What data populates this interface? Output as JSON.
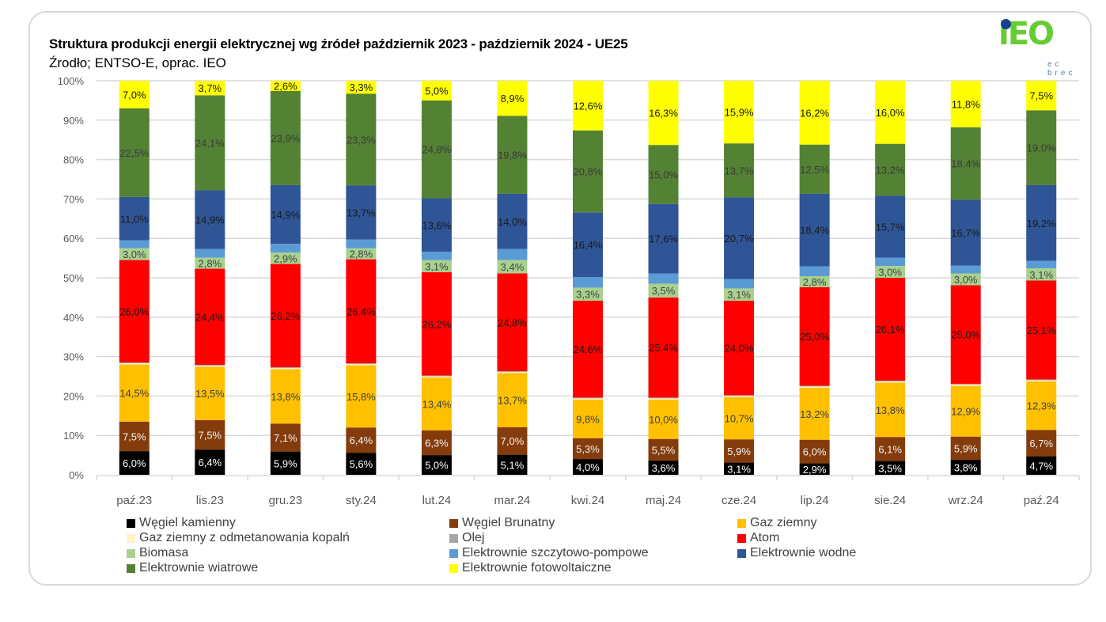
{
  "header": {
    "title": "Struktura produkcji energii elektrycznej wg źródeł październik 2023 - październik 2024  - UE25",
    "subtitle": "Źrodło; ENTSO-E, oprac. IEO",
    "logo_text": "iEO",
    "logo_subtext": "ec brec"
  },
  "chart_data": {
    "type": "bar",
    "stacked": true,
    "normalized": true,
    "title": "Struktura produkcji energii elektrycznej wg źródeł październik 2023 - październik 2024  - UE25",
    "subtitle": "Źrodło; ENTSO-E, oprac. IEO",
    "xlabel": "",
    "ylabel": "",
    "ylim": [
      0,
      100
    ],
    "yticks": [
      "0%",
      "10%",
      "20%",
      "30%",
      "40%",
      "50%",
      "60%",
      "70%",
      "80%",
      "90%",
      "100%"
    ],
    "grid": true,
    "legend_position": "bottom",
    "categories": [
      "paź.23",
      "lis.23",
      "gru.23",
      "sty.24",
      "lut.24",
      "mar.24",
      "kwi.24",
      "maj.24",
      "cze.24",
      "lip.24",
      "sie.24",
      "wrz.24",
      "paź.24"
    ],
    "series": [
      {
        "name": "Węgiel kamienny",
        "color": "#000000",
        "label_color": "#ffffff",
        "labeled": true,
        "values": [
          6.0,
          6.4,
          5.9,
          5.6,
          5.0,
          5.1,
          4.0,
          3.6,
          3.1,
          2.9,
          3.5,
          3.8,
          4.7
        ]
      },
      {
        "name": "Węgiel Brunatny",
        "color": "#843c0c",
        "label_color": "#f2f2f2",
        "labeled": true,
        "values": [
          7.5,
          7.5,
          7.1,
          6.4,
          6.3,
          7.0,
          5.3,
          5.5,
          5.9,
          6.0,
          6.1,
          5.9,
          6.7
        ]
      },
      {
        "name": "Gaz ziemny",
        "color": "#ffc000",
        "label_color": "#404040",
        "labeled": true,
        "values": [
          14.5,
          13.5,
          13.8,
          15.8,
          13.4,
          13.7,
          9.8,
          10.0,
          10.7,
          13.2,
          13.8,
          12.9,
          12.3
        ]
      },
      {
        "name": "Gaz ziemny z odmetanowania kopalń",
        "color": "#fff2cc",
        "label_color": "#404040",
        "labeled": false,
        "values": [
          0.3,
          0.3,
          0.3,
          0.3,
          0.3,
          0.3,
          0.3,
          0.3,
          0.3,
          0.3,
          0.3,
          0.3,
          0.3
        ]
      },
      {
        "name": "Olej",
        "color": "#a5a5a5",
        "label_color": "#404040",
        "labeled": false,
        "values": [
          0.2,
          0.2,
          0.2,
          0.2,
          0.2,
          0.2,
          0.2,
          0.2,
          0.2,
          0.2,
          0.2,
          0.2,
          0.2
        ]
      },
      {
        "name": "Atom",
        "color": "#ff0000",
        "label_color": "#1a1a1a",
        "labeled": true,
        "values": [
          26.0,
          24.4,
          26.2,
          26.4,
          26.2,
          24.8,
          24.6,
          25.4,
          24.0,
          25.0,
          26.1,
          25.0,
          25.1
        ]
      },
      {
        "name": "Biomasa",
        "color": "#a9d18e",
        "label_color": "#404040",
        "labeled": true,
        "values": [
          3.0,
          2.8,
          2.9,
          2.8,
          3.1,
          3.4,
          3.3,
          3.5,
          3.1,
          2.8,
          3.0,
          3.0,
          3.1
        ]
      },
      {
        "name": "Elektrownie szczytowo-pompowe",
        "color": "#5b9bd5",
        "label_color": "#404040",
        "labeled": false,
        "values": [
          2.0,
          2.2,
          2.2,
          2.2,
          2.1,
          2.8,
          2.7,
          2.6,
          2.4,
          2.5,
          2.1,
          2.0,
          1.9
        ]
      },
      {
        "name": "Elektrownie wodne",
        "color": "#2f5597",
        "label_color": "#1a1a1a",
        "labeled": true,
        "values": [
          11.0,
          14.9,
          14.9,
          13.7,
          13.6,
          14.0,
          16.4,
          17.6,
          20.7,
          18.4,
          15.7,
          16.7,
          19.2
        ]
      },
      {
        "name": "Elektrownie wiatrowe",
        "color": "#548235",
        "label_color": "#3a3a3a",
        "labeled": true,
        "values": [
          22.5,
          24.1,
          23.9,
          23.3,
          24.8,
          19.8,
          20.8,
          15.0,
          13.7,
          12.5,
          13.2,
          18.4,
          19.0
        ]
      },
      {
        "name": "Elektrownie fotowoltaiczne",
        "color": "#ffff00",
        "label_color": "#1a1a1a",
        "labeled": true,
        "values": [
          7.0,
          3.7,
          2.6,
          3.3,
          5.0,
          8.9,
          12.6,
          16.3,
          15.9,
          16.2,
          16.0,
          11.8,
          7.5
        ]
      }
    ]
  },
  "legend": {
    "items": [
      {
        "label": "Węgiel kamienny",
        "color": "#000000"
      },
      {
        "label": "Węgiel Brunatny",
        "color": "#843c0c"
      },
      {
        "label": "Gaz ziemny",
        "color": "#ffc000"
      },
      {
        "label": "Gaz ziemny z odmetanowania kopalń",
        "color": "#fff2cc"
      },
      {
        "label": "Olej",
        "color": "#a5a5a5"
      },
      {
        "label": "Atom",
        "color": "#ff0000"
      },
      {
        "label": "Biomasa",
        "color": "#a9d18e"
      },
      {
        "label": "Elektrownie szczytowo-pompowe",
        "color": "#5b9bd5"
      },
      {
        "label": "Elektrownie wodne",
        "color": "#2f5597"
      },
      {
        "label": "Elektrownie wiatrowe",
        "color": "#548235"
      },
      {
        "label": "Elektrownie fotowoltaiczne",
        "color": "#ffff00"
      }
    ]
  }
}
